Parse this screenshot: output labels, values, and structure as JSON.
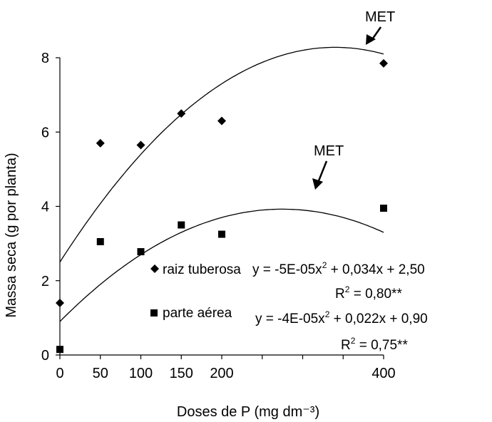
{
  "chart_data": {
    "type": "scatter",
    "xlabel": "Doses de P  (mg dm⁻³)",
    "ylabel": "Massa seca (g por planta)",
    "xlim": [
      0,
      400
    ],
    "ylim": [
      0,
      8
    ],
    "x_ticks": [
      0,
      50,
      100,
      150,
      200,
      400
    ],
    "y_ticks": [
      0,
      2,
      4,
      6,
      8
    ],
    "grid": false,
    "legend_position": "center-right",
    "series": [
      {
        "name": "raiz tuberosa",
        "marker": "diamond",
        "x": [
          0,
          50,
          100,
          150,
          200,
          400
        ],
        "y": [
          1.4,
          5.7,
          5.65,
          6.5,
          6.3,
          7.85
        ],
        "fit": {
          "a": -5e-05,
          "b": 0.034,
          "c": 2.5,
          "equation": "y = -5E-05x",
          "equation_rest": " + 0,034x + 2,50",
          "r2_value": " = 0,80**"
        },
        "annotation": "MET"
      },
      {
        "name": "parte aérea",
        "marker": "square",
        "x": [
          0,
          50,
          100,
          150,
          200,
          400
        ],
        "y": [
          0.15,
          3.05,
          2.78,
          3.5,
          3.25,
          3.95
        ],
        "fit": {
          "a": -4e-05,
          "b": 0.022,
          "c": 0.9,
          "equation": "y = -4E-05x",
          "equation_rest": " + 0,022x + 0,90",
          "r2_value": " = 0,75**"
        },
        "annotation": "MET"
      }
    ]
  }
}
